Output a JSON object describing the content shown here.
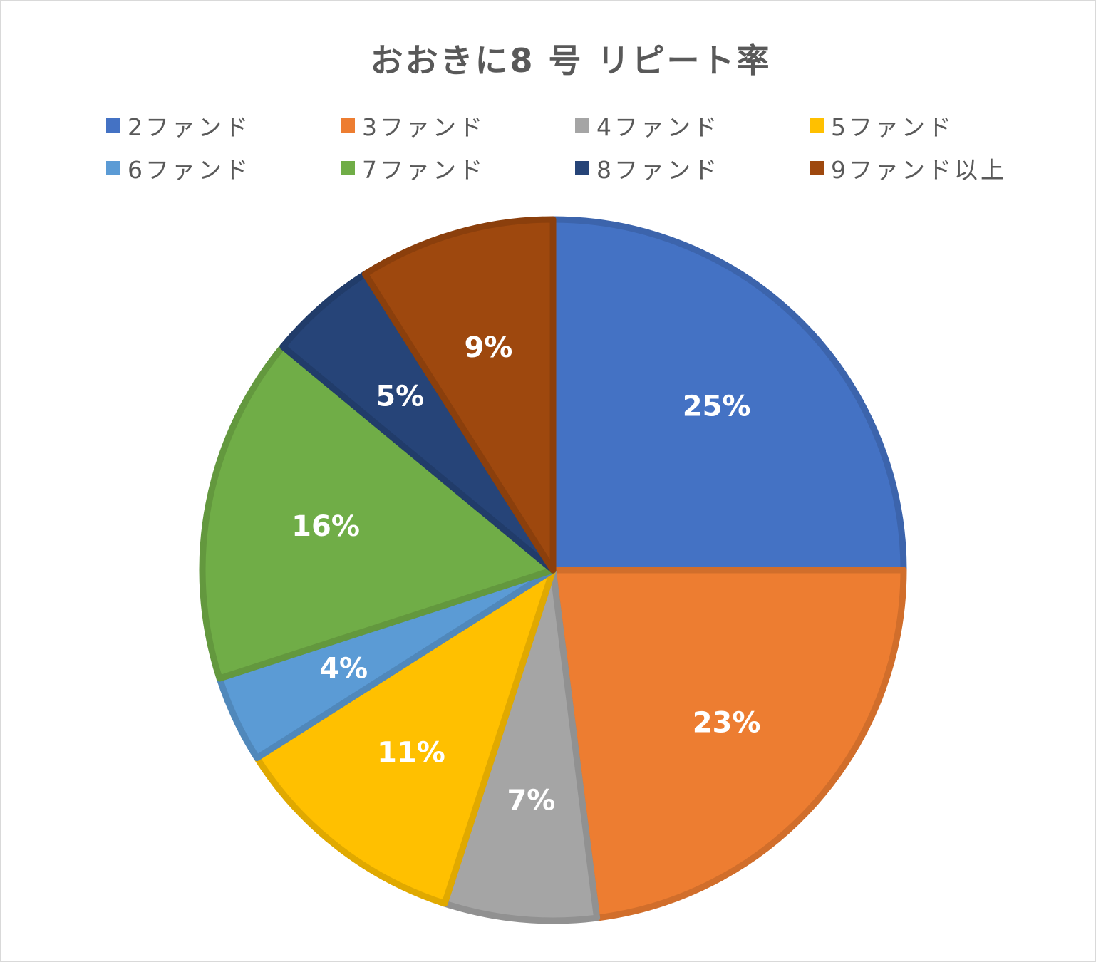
{
  "chart_data": {
    "type": "pie",
    "title": "おおきに8 号 リピート率",
    "categories": [
      "2ファンド",
      "3ファンド",
      "4ファンド",
      "5ファンド",
      "6ファンド",
      "7ファンド",
      "8ファンド",
      "9ファンド以上"
    ],
    "values": [
      25,
      23,
      7,
      11,
      4,
      16,
      5,
      9
    ],
    "value_labels": [
      "25%",
      "23%",
      "7%",
      "11%",
      "4%",
      "16%",
      "5%",
      "9%"
    ],
    "colors": [
      "#4472C4",
      "#ED7D31",
      "#A5A5A5",
      "#FFC000",
      "#5B9BD5",
      "#70AD47",
      "#264478",
      "#9E480E"
    ],
    "legend_position": "top",
    "start_angle": "12 o'clock, clockwise"
  }
}
